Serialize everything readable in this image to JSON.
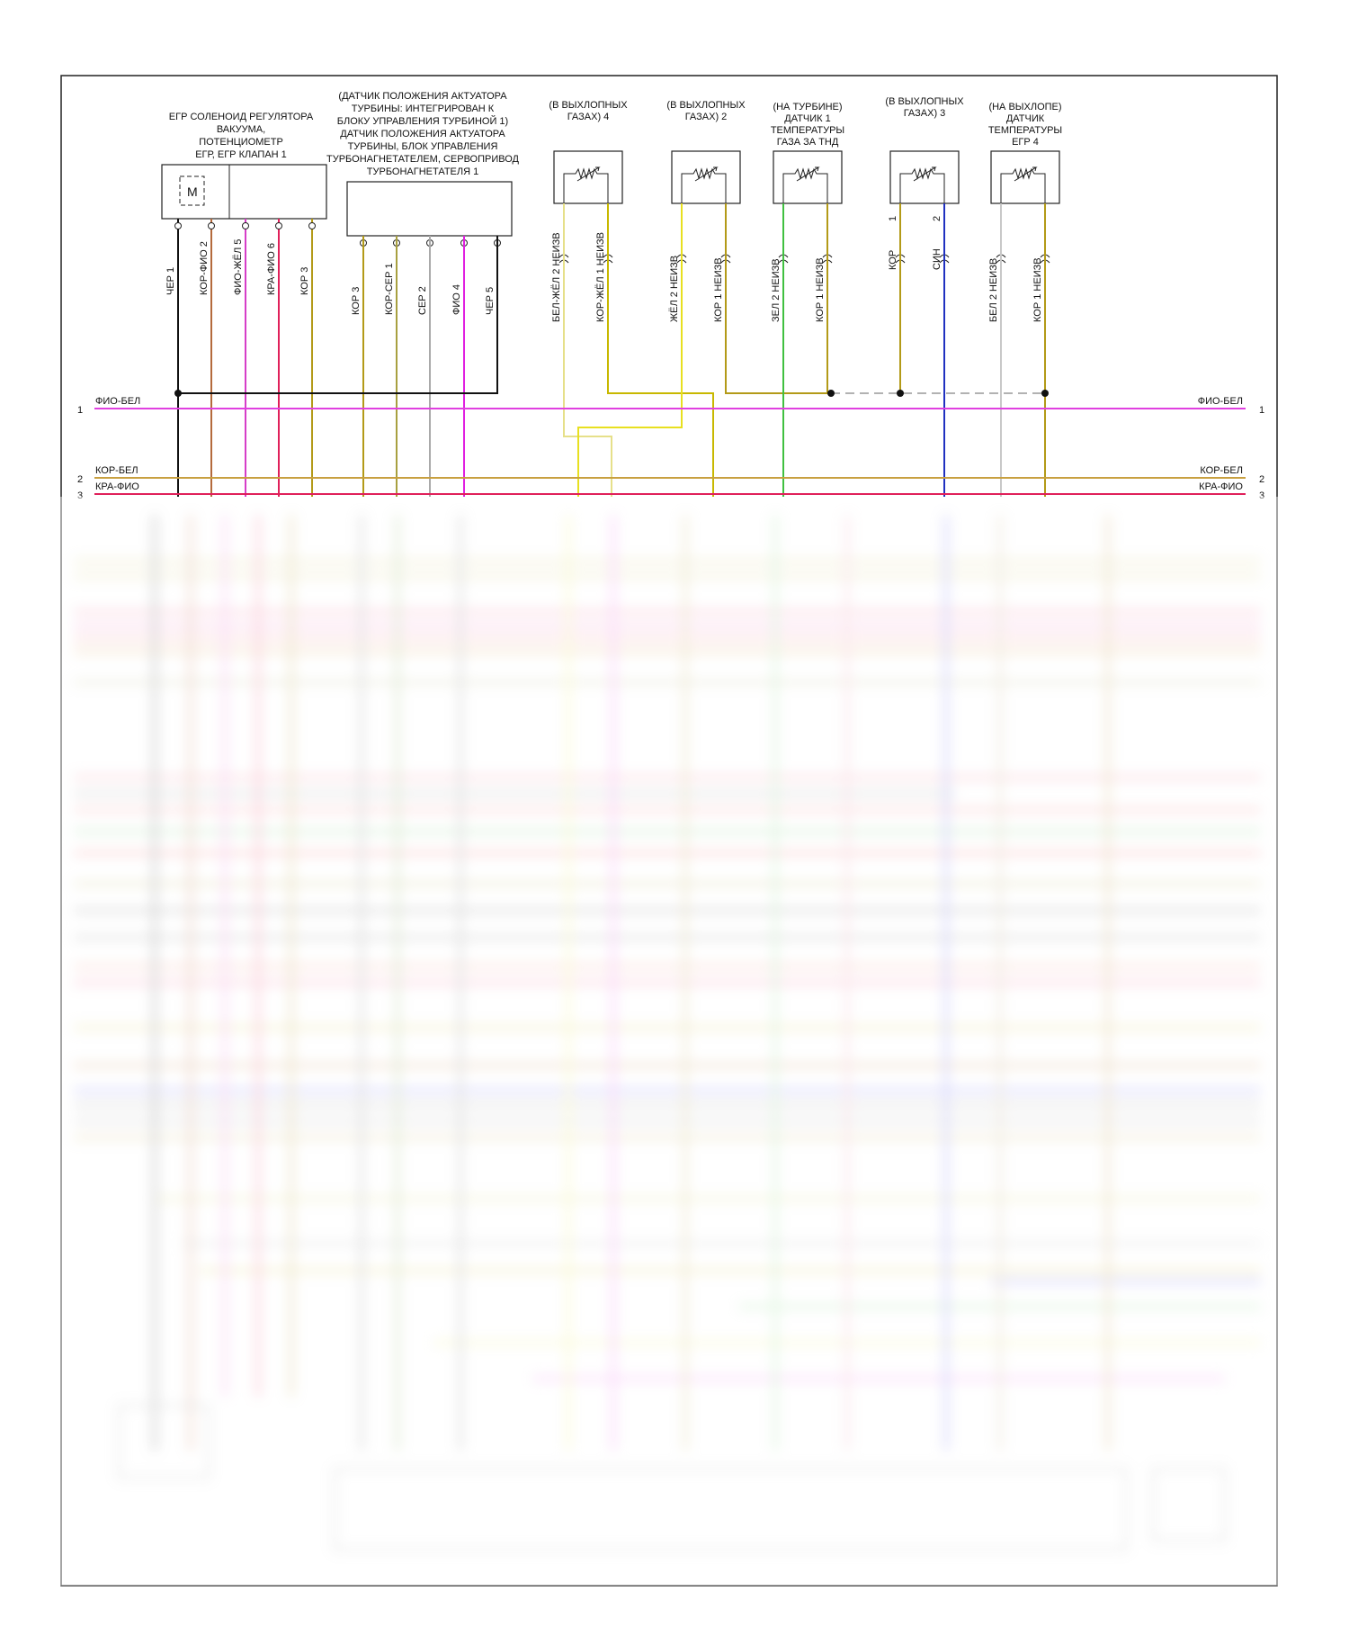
{
  "components": {
    "egr": {
      "title_lines": [
        "ЕГР СОЛЕНОИД РЕГУЛЯТОРА",
        "ВАКУУМА,",
        "ПОТЕНЦИОМЕТР",
        "ЕГР, ЕГР КЛАПАН 1"
      ],
      "motor_symbol": "M",
      "pins": [
        {
          "wire": "ЧЕР",
          "pin": "1",
          "color": "#111111"
        },
        {
          "wire": "КОР-ФИО",
          "pin": "2",
          "color": "#b46a3c"
        },
        {
          "wire": "ФИО-ЖЁЛ",
          "pin": "5",
          "color": "#d63ec8"
        },
        {
          "wire": "КРА-ФИО",
          "pin": "6",
          "color": "#e0205a"
        },
        {
          "wire": "КОР",
          "pin": "3",
          "color": "#b39a18"
        }
      ]
    },
    "turbo": {
      "title_lines": [
        "(ДАТЧИК ПОЛОЖЕНИЯ АКТУАТОРА",
        "ТУРБИНЫ: ИНТЕГРИРОВАН К",
        "БЛОКУ УПРАВЛЕНИЯ ТУРБИНОЙ 1)",
        "ДАТЧИК ПОЛОЖЕНИЯ АКТУАТОРА",
        "ТУРБИНЫ, БЛОК УПРАВЛЕНИЯ",
        "ТУРБОНАГНЕТАТЕЛЕМ, СЕРВОПРИВОД",
        "ТУРБОНАГНЕТАТЕЛЯ 1"
      ],
      "pins": [
        {
          "wire": "КОР",
          "pin": "3",
          "color": "#b39a18"
        },
        {
          "wire": "КОР-СЕР",
          "pin": "1",
          "color": "#a8a040"
        },
        {
          "wire": "СЕР",
          "pin": "2",
          "color": "#aaaaaa"
        },
        {
          "wire": "ФИО",
          "pin": "4",
          "color": "#e020e0"
        },
        {
          "wire": "ЧЕР",
          "pin": "5",
          "color": "#111111"
        }
      ]
    },
    "sensors": [
      {
        "title_lines": [
          "(В ВЫХЛОПНЫХ",
          "ГАЗАХ) 4"
        ],
        "pins": [
          {
            "wire": "БЕЛ-ЖЁЛ",
            "pin": "2",
            "note": "НЕИЗВ",
            "color": "#e6e08a"
          },
          {
            "wire": "КОР-ЖЁЛ",
            "pin": "1",
            "note": "НЕИЗВ",
            "color": "#c8b800"
          }
        ]
      },
      {
        "title_lines": [
          "(В ВЫХЛОПНЫХ",
          "ГАЗАХ) 2"
        ],
        "pins": [
          {
            "wire": "ЖЁЛ",
            "pin": "2",
            "note": "НЕИЗВ",
            "color": "#e8e020"
          },
          {
            "wire": "КОР",
            "pin": "1",
            "note": "НЕИЗВ",
            "color": "#b39a18"
          }
        ]
      },
      {
        "title_lines": [
          "(НА ТУРБИНЕ)",
          "ДАТЧИК 1",
          "ТЕМПЕРАТУРЫ",
          "ГАЗА ЗА ТНД"
        ],
        "pins": [
          {
            "wire": "ЗЕЛ",
            "pin": "2",
            "note": "НЕИЗВ",
            "color": "#40c040"
          },
          {
            "wire": "КОР",
            "pin": "1",
            "note": "НЕИЗВ",
            "color": "#b39a18"
          }
        ]
      },
      {
        "title_lines": [
          "(В ВЫХЛОПНЫХ",
          "ГАЗАХ) 3"
        ],
        "pins": [
          {
            "wire": "КОР",
            "pin": "1",
            "note": "",
            "color": "#b39a18"
          },
          {
            "wire": "СИН",
            "pin": "2",
            "note": "",
            "color": "#2030c0"
          }
        ]
      },
      {
        "title_lines": [
          "(НА ВЫХЛОПЕ)",
          "ДАТЧИК",
          "ТЕМПЕРАТУРЫ",
          "ЕГР 4"
        ],
        "pins": [
          {
            "wire": "БЕЛ",
            "pin": "2",
            "note": "НЕИЗВ",
            "color": "#c8c8c8"
          },
          {
            "wire": "КОР",
            "pin": "1",
            "note": "НЕИЗВ",
            "color": "#b39a18"
          }
        ]
      }
    ]
  },
  "buses": [
    {
      "num": "1",
      "label": "ФИО-БЕЛ",
      "color": "#e040e0"
    },
    {
      "num": "2",
      "label": "КОР-БЕЛ",
      "color": "#c8a040"
    },
    {
      "num": "3",
      "label": "КРА-ФИО",
      "color": "#e0205a"
    }
  ]
}
